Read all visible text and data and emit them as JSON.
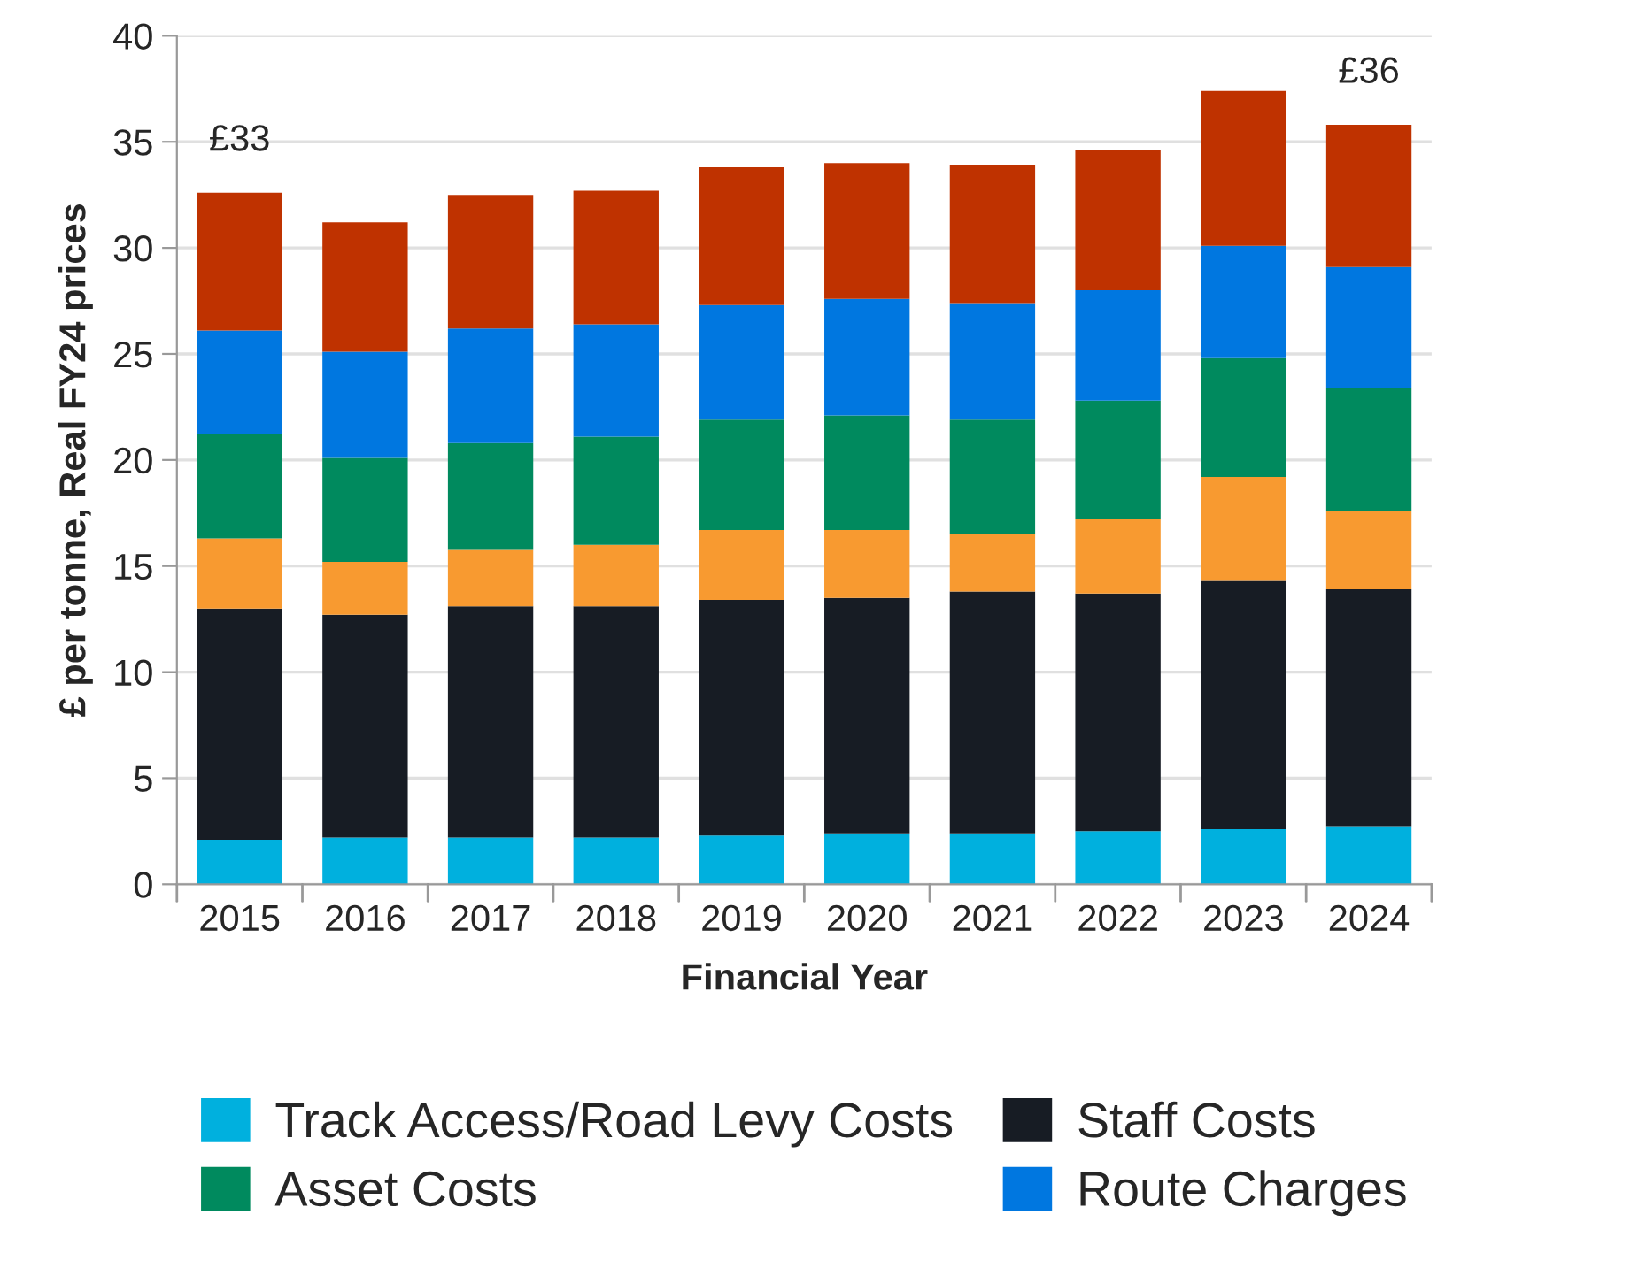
{
  "chart_data": {
    "type": "bar",
    "stacked": true,
    "xlabel": "Financial Year",
    "ylabel": "£ per tonne, Real FY24 prices",
    "categories": [
      "2015",
      "2016",
      "2017",
      "2018",
      "2019",
      "2020",
      "2021",
      "2022",
      "2023",
      "2024"
    ],
    "series": [
      {
        "name": "Track Access/Road Levy Costs",
        "color": "#00b0de",
        "values": [
          2.1,
          2.2,
          2.2,
          2.2,
          2.3,
          2.4,
          2.4,
          2.5,
          2.6,
          2.7
        ]
      },
      {
        "name": "Staff Costs",
        "color": "#171c24",
        "values": [
          10.9,
          10.5,
          10.9,
          10.9,
          11.1,
          11.1,
          11.4,
          11.2,
          11.7,
          11.2
        ]
      },
      {
        "color": "#f89a30",
        "values": [
          3.3,
          2.5,
          2.7,
          2.9,
          3.3,
          3.2,
          2.7,
          3.5,
          4.9,
          3.7
        ]
      },
      {
        "name": "Asset Costs",
        "color": "#008a5e",
        "values": [
          4.9,
          4.9,
          5.0,
          5.1,
          5.2,
          5.4,
          5.4,
          5.6,
          5.6,
          5.8
        ]
      },
      {
        "name": "Route Charges",
        "color": "#0077e0",
        "values": [
          4.9,
          5.0,
          5.4,
          5.3,
          5.4,
          5.5,
          5.5,
          5.2,
          5.3,
          5.7
        ]
      },
      {
        "color": "#bf3200",
        "values": [
          6.5,
          6.1,
          6.3,
          6.3,
          6.5,
          6.4,
          6.5,
          6.6,
          7.3,
          6.7
        ]
      }
    ],
    "ylim": [
      0,
      40
    ],
    "yticks": [
      0,
      5,
      10,
      15,
      20,
      25,
      30,
      35,
      40
    ],
    "grid": "y",
    "legend": "bottom",
    "annotations": [
      {
        "text": "£33",
        "x": "2015",
        "y": 32.6
      },
      {
        "text": "£36",
        "x": "2024",
        "y": 35.8
      }
    ]
  }
}
